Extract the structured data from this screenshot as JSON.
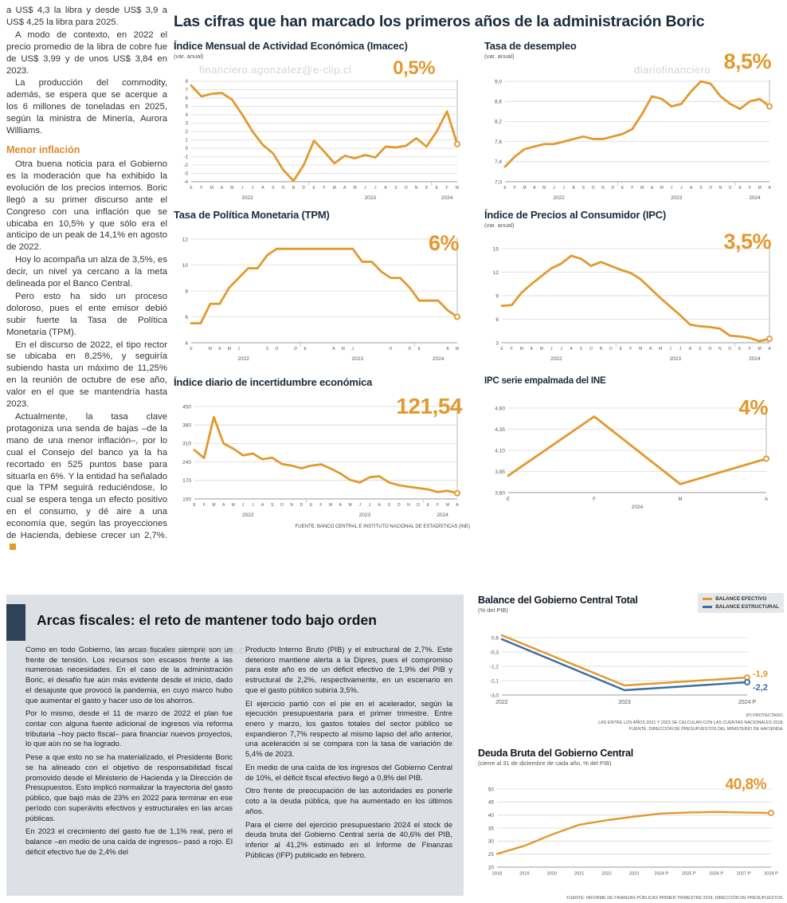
{
  "watermarks": {
    "w1": "financiero.agonzalez@e-clip.cl",
    "w2": "diariofinanciero",
    "w3": "ero.agonzalez@e-clip.cl"
  },
  "article": {
    "paragraphs": [
      "a US$ 4,3 la libra y desde US$ 3,9 a US$ 4,25 la libra para 2025.",
      "A modo de contexto, en 2022 el precio promedio de la libra de cobre fue de US$ 3,99 y de unos US$ 3,84 en 2023.",
      "La producción del commodity, además, se espera que se acerque a los 6 millones de toneladas en 2025, según la ministra de Minería, Aurora Williams."
    ],
    "subhead": "Menor inflación",
    "paragraphs2": [
      "Otra buena noticia para el Gobierno es la moderación que ha exhibido la evolución de los precios internos. Boric llegó a su primer discurso ante el Congreso con una inflación que se ubicaba en 10,5% y que sólo era el anticipo de un peak de 14,1% en agosto de 2022.",
      "Hoy lo acompaña un alza de 3,5%, es decir, un nivel ya cercano a la meta delineada por el Banco Central.",
      "Pero esto ha sido un proceso doloroso, pues el ente emisor debió subir fuerte la Tasa de Política Monetaria (TPM).",
      "En el discurso de 2022, el tipo rector se ubicaba en 8,25%, y seguiría subiendo hasta un máximo de 11,25% en la reunión de octubre de ese año, valor en el que se mantendría hasta 2023.",
      "Actualmente, la tasa clave protagoniza una senda de bajas –de la mano de una menor inflación–, por lo cual el Consejo del banco ya la ha recortado en 525 puntos base para situarla en 6%. Y la entidad ha señalado que la TPM seguirá reduciéndose, lo cual se espera tenga un efecto positivo en el consumo, y dé aire a una economía que, según las proyecciones de Hacienda, debiese crecer un 2,7%."
    ]
  },
  "main": {
    "title": "Las cifras que han marcado los primeros años de la administración Boric",
    "source": "FUENTE: BANCO CENTRAL E INSTITUTO NACIONAL DE ESTADÍSTICAS (INE)"
  },
  "fiscal": {
    "title": "Arcas fiscales: el reto de mantener todo bajo orden",
    "col1": [
      "Como en todo Gobierno, las arcas fiscales siempre son un frente de tensión. Los recursos son escasos frente a las numerosas necesidades. En el caso de la administración Boric, el desafío fue aún más evidente desde el inicio, dado el desajuste que provocó la pandemia, en cuyo marco hubo que aumentar el gasto y hacer uso de los ahorros.",
      "Por lo mismo, desde el 11 de marzo de 2022 el plan fue contar con alguna fuente adicional de ingresos vía reforma tributaria –hoy pacto fiscal– para financiar nuevos proyectos, lo que aún no se ha logrado.",
      "Pese a que esto no se ha materializado, el Presidente Boric se ha alineado con el objetivo de responsabilidad fiscal promovido desde el Ministerio de Hacienda y la Dirección de Presupuestos. Esto implicó normalizar la trayectoria del gasto público, que bajó más de 23% en 2022 para terminar en ese período con superávits efectivos y estructurales en las arcas públicas.",
      "En 2023 el crecimiento del gasto fue de 1,1% real, pero el balance –en medio de una caída de ingresos– pasó a rojo. El déficit efectivo fue de 2,4% del"
    ],
    "col2": [
      "Producto Interno Bruto (PIB) y el estructural de 2,7%. Este deterioro mantiene alerta a la Dipres, pues el compromiso para este año es de un déficit efectivo de 1,9% del PIB y estructural de 2,2%, respectivamente, en un escenario en que el gasto público subiría 3,5%.",
      "El ejercicio partió con el pie en el acelerador, según la ejecución presupuestaria para el primer trimestre. Entre enero y marzo, los gastos totales del sector público se expandieron 7,7% respecto al mismo lapso del año anterior, una aceleración si se compara con la tasa de variación de 5,4% de 2023.",
      "En medio de una caída de los ingresos del Gobierno Central de 10%, el déficit fiscal efectivo llegó a 0,8% del PIB.",
      "Otro frente de preocupación de las autoridades es ponerle coto a la deuda pública, que ha aumentado en los últimos años.",
      "Para el cierre del ejercicio presupuestario 2024 el stock de deuda bruta del Gobierno Central sería de 40,6% del PIB, inferior al 41,2% estimado en el Informe de Finanzas Públicas (IFP) publicado en febrero."
    ]
  },
  "colors": {
    "accent_orange": "#E2992F",
    "line_blue": "#3C6E9F",
    "panel_gray": "#DDE1E6",
    "accent_navy": "#2F4257"
  },
  "chart_data": [
    {
      "type": "line",
      "id": "imacec",
      "title": "Índice Mensual de Actividad Económica (Imacec)",
      "subtitle": "(var. anual)",
      "callout": "0,5%",
      "color": "#E2992F",
      "ylim": [
        -4,
        8
      ],
      "y_ticks": [
        {
          "v": 8,
          "t": "8"
        },
        {
          "v": 7,
          "t": "7"
        },
        {
          "v": 6,
          "t": "6"
        },
        {
          "v": 5,
          "t": "5"
        },
        {
          "v": 4,
          "t": "4"
        },
        {
          "v": 3,
          "t": "3"
        },
        {
          "v": 2,
          "t": "2"
        },
        {
          "v": 1,
          "t": "1"
        },
        {
          "v": 0,
          "t": "0"
        },
        {
          "v": -1,
          "t": "-1"
        },
        {
          "v": -2,
          "t": "-2"
        },
        {
          "v": -3,
          "t": "-3"
        },
        {
          "v": -4,
          "t": "-4"
        }
      ],
      "x_labels": [
        "E",
        "F",
        "M",
        "A",
        "M",
        "J",
        "J",
        "A",
        "S",
        "O",
        "N",
        "D",
        "E",
        "F",
        "M",
        "A",
        "M",
        "J",
        "J",
        "A",
        "S",
        "O",
        "N",
        "D",
        "E",
        "F",
        "M"
      ],
      "years": [
        {
          "t": "2022",
          "from": 0,
          "to": 11
        },
        {
          "t": "2023",
          "from": 12,
          "to": 23
        },
        {
          "t": "2024",
          "from": 24,
          "to": 26
        }
      ],
      "values": [
        7.5,
        6.2,
        6.5,
        6.6,
        5.8,
        4.0,
        2.0,
        0.4,
        -0.6,
        -2.6,
        -3.9,
        -2.0,
        0.9,
        -0.4,
        -1.8,
        -0.9,
        -1.2,
        -0.8,
        -1.1,
        0.2,
        0.1,
        0.3,
        1.2,
        0.2,
        2.0,
        4.4,
        0.5
      ],
      "drop_line": true
    },
    {
      "type": "line",
      "id": "desempleo",
      "title": "Tasa de desempleo",
      "subtitle": "(var. anual)",
      "callout": "8,5%",
      "color": "#E2992F",
      "ylim": [
        7.0,
        9.0
      ],
      "y_ticks": [
        {
          "v": 9.0,
          "t": "9,0"
        },
        {
          "v": 8.6,
          "t": "8,6"
        },
        {
          "v": 8.2,
          "t": "8,2"
        },
        {
          "v": 7.8,
          "t": "7,8"
        },
        {
          "v": 7.4,
          "t": "7,4"
        },
        {
          "v": 7.0,
          "t": "7,0"
        }
      ],
      "x_labels": [
        "E",
        "F",
        "M",
        "A",
        "M",
        "J",
        "J",
        "A",
        "S",
        "O",
        "N",
        "D",
        "E",
        "F",
        "M",
        "A",
        "M",
        "J",
        "J",
        "A",
        "S",
        "O",
        "N",
        "D",
        "E",
        "F",
        "M",
        "A"
      ],
      "years": [
        {
          "t": "2022",
          "from": 0,
          "to": 11
        },
        {
          "t": "2023",
          "from": 12,
          "to": 23
        },
        {
          "t": "2024",
          "from": 24,
          "to": 27
        }
      ],
      "values": [
        7.3,
        7.5,
        7.65,
        7.7,
        7.75,
        7.75,
        7.8,
        7.85,
        7.9,
        7.85,
        7.85,
        7.9,
        7.95,
        8.05,
        8.35,
        8.7,
        8.65,
        8.5,
        8.55,
        8.8,
        9.0,
        8.95,
        8.7,
        8.55,
        8.45,
        8.6,
        8.65,
        8.5
      ],
      "drop_line": true
    },
    {
      "type": "line",
      "id": "tpm",
      "title": "Tasa de Política Monetaria (TPM)",
      "callout": "6%",
      "color": "#E2992F",
      "ylim": [
        4,
        12
      ],
      "y_ticks": [
        {
          "v": 12,
          "t": "12"
        },
        {
          "v": 10,
          "t": "10"
        },
        {
          "v": 8,
          "t": "8"
        },
        {
          "v": 6,
          "t": "6"
        },
        {
          "v": 4,
          "t": "4"
        }
      ],
      "x_labels": [
        "E",
        "",
        "M",
        "A",
        "M",
        "J",
        "",
        "",
        "S",
        "O",
        "",
        "D",
        "E",
        "",
        "",
        "A",
        "M",
        "J",
        "",
        "",
        "",
        "O",
        "",
        "D",
        "E",
        "",
        "",
        "A",
        "M"
      ],
      "years": [
        {
          "t": "2022",
          "from": 0,
          "to": 11
        },
        {
          "t": "2023",
          "from": 12,
          "to": 23
        },
        {
          "t": "2024",
          "from": 24,
          "to": 28
        }
      ],
      "values": [
        5.5,
        5.5,
        7.0,
        7.0,
        8.25,
        9.0,
        9.75,
        9.75,
        10.75,
        11.25,
        11.25,
        11.25,
        11.25,
        11.25,
        11.25,
        11.25,
        11.25,
        11.25,
        10.25,
        10.25,
        9.5,
        9.0,
        9.0,
        8.25,
        7.25,
        7.25,
        7.25,
        6.5,
        6.0
      ],
      "drop_line": true
    },
    {
      "type": "line",
      "id": "ipc",
      "title": "Índice de Precios al Consumidor (IPC)",
      "subtitle": "(var. anual)",
      "callout": "3,5%",
      "color": "#E2992F",
      "ylim": [
        3,
        15
      ],
      "y_ticks": [
        {
          "v": 15,
          "t": "15"
        },
        {
          "v": 12,
          "t": "12"
        },
        {
          "v": 9,
          "t": "9"
        },
        {
          "v": 6,
          "t": "6"
        },
        {
          "v": 3,
          "t": "3"
        }
      ],
      "x_labels": [
        "E",
        "F",
        "M",
        "A",
        "M",
        "J",
        "J",
        "A",
        "S",
        "O",
        "N",
        "D",
        "E",
        "F",
        "M",
        "A",
        "M",
        "J",
        "J",
        "A",
        "S",
        "O",
        "N",
        "D",
        "E",
        "F",
        "M",
        "A"
      ],
      "years": [
        {
          "t": "2022",
          "from": 0,
          "to": 11
        },
        {
          "t": "2023",
          "from": 12,
          "to": 23
        },
        {
          "t": "2024",
          "from": 24,
          "to": 27
        }
      ],
      "values": [
        7.7,
        7.8,
        9.4,
        10.5,
        11.5,
        12.5,
        13.1,
        14.1,
        13.7,
        12.8,
        13.3,
        12.8,
        12.3,
        11.9,
        11.1,
        9.9,
        8.7,
        7.6,
        6.5,
        5.3,
        5.1,
        5.0,
        4.8,
        3.9,
        3.8,
        3.6,
        3.2,
        3.5
      ],
      "drop_line": true
    },
    {
      "type": "line",
      "id": "incertidumbre",
      "title": "Índice diario de incertidumbre económica",
      "callout": "121,54",
      "color": "#E2992F",
      "ylim": [
        100,
        450
      ],
      "y_ticks": [
        {
          "v": 450,
          "t": "450"
        },
        {
          "v": 380,
          "t": "380"
        },
        {
          "v": 310,
          "t": "310"
        },
        {
          "v": 240,
          "t": "240"
        },
        {
          "v": 170,
          "t": "170"
        },
        {
          "v": 100,
          "t": "100"
        }
      ],
      "x_labels": [
        "E",
        "F",
        "M",
        "A",
        "M",
        "J",
        "J",
        "A",
        "S",
        "O",
        "N",
        "D",
        "E",
        "F",
        "M",
        "A",
        "M",
        "J",
        "J",
        "A",
        "S",
        "O",
        "N",
        "D",
        "E",
        "F",
        "M",
        "A"
      ],
      "years": [
        {
          "t": "2022",
          "from": 0,
          "to": 11
        },
        {
          "t": "2023",
          "from": 12,
          "to": 23
        },
        {
          "t": "2024",
          "from": 24,
          "to": 27
        }
      ],
      "values": [
        285,
        255,
        410,
        310,
        290,
        265,
        272,
        250,
        256,
        232,
        226,
        216,
        226,
        231,
        215,
        196,
        172,
        162,
        182,
        186,
        162,
        152,
        146,
        141,
        136,
        126,
        131,
        121.54
      ],
      "drop_line": true
    },
    {
      "type": "line",
      "id": "ipc_ine",
      "title": "IPC serie empalmada del INE",
      "callout": "4%",
      "color": "#E2992F",
      "ylim": [
        3.6,
        4.6
      ],
      "y_ticks": [
        {
          "v": 4.6,
          "t": "4,60"
        },
        {
          "v": 4.35,
          "t": "4,35"
        },
        {
          "v": 4.1,
          "t": "4,10"
        },
        {
          "v": 3.85,
          "t": "3,85"
        },
        {
          "v": 3.6,
          "t": "3,60"
        }
      ],
      "x_labels": [
        "E",
        "F",
        "M",
        "A"
      ],
      "years": [
        {
          "t": "2024",
          "from": 0,
          "to": 3
        }
      ],
      "values": [
        3.8,
        4.5,
        3.7,
        4.0
      ],
      "drop_line": true
    },
    {
      "type": "line",
      "id": "balance",
      "title": "Balance del Gobierno Central Total",
      "subtitle": "(% del PIB)",
      "legend": [
        {
          "label": "BALANCE EFECTIVO",
          "color": "#E2992F"
        },
        {
          "label": "BALANCE ESTRUCTURAL",
          "color": "#3C6E9F"
        }
      ],
      "ylim": [
        -3.0,
        0.9
      ],
      "y_ticks": [
        {
          "v": 0.6,
          "t": "0,6"
        },
        {
          "v": -0.3,
          "t": "-0,3"
        },
        {
          "v": -1.2,
          "t": "-1,2"
        },
        {
          "v": -2.1,
          "t": "-2,1"
        },
        {
          "v": -3.0,
          "t": "-3,0"
        }
      ],
      "x_labels": [
        "2022",
        "2023",
        "2024 P"
      ],
      "series": [
        {
          "name": "BALANCE EFECTIVO",
          "color": "#E2992F",
          "values": [
            0.75,
            -2.4,
            -1.9
          ],
          "callout": "-1,9",
          "callout_dy": -1
        },
        {
          "name": "BALANCE ESTRUCTURAL",
          "color": "#3C6E9F",
          "values": [
            0.5,
            -2.7,
            -2.2
          ],
          "callout": "-2,2",
          "callout_dy": 10
        }
      ],
      "footnotes": [
        "(P) PROYECTADO.",
        "LAS ENTRE LOS AÑOS 2021 Y 2023 SE CALCULAN CON LAS CUENTAS NACIONALES 2018.",
        "FUENTE: DIRECCIÓN DE PRESUPUESTOS DEL MINISTERIO DE HACIENDA."
      ]
    },
    {
      "type": "line",
      "id": "deuda",
      "title": "Deuda Bruta del Gobierno Central",
      "subtitle": "(cierre al 31 de diciembre de cada año, % del PIB)",
      "callout": "40,8%",
      "color": "#E2992F",
      "ylim": [
        20,
        50
      ],
      "y_ticks": [
        {
          "v": 50,
          "t": "50"
        },
        {
          "v": 45,
          "t": "45"
        },
        {
          "v": 40,
          "t": "40"
        },
        {
          "v": 35,
          "t": "35"
        },
        {
          "v": 30,
          "t": "30"
        },
        {
          "v": 25,
          "t": "25"
        },
        {
          "v": 20,
          "t": "20"
        }
      ],
      "x_labels": [
        "2018",
        "2019",
        "2020",
        "2021",
        "2022",
        "2023",
        "2024 P",
        "2025 P",
        "2026 P",
        "2027 P",
        "2028 P"
      ],
      "values": [
        25.1,
        28.2,
        32.5,
        36.3,
        38.0,
        39.4,
        40.6,
        41.0,
        41.2,
        41.0,
        40.8
      ],
      "footnote": "FUENTE: INFORME DE FINANZAS PÚBLICAS PRIMER TRIMESTRE 2024, DIRECCIÓN DE PRESUPUESTOS."
    }
  ]
}
